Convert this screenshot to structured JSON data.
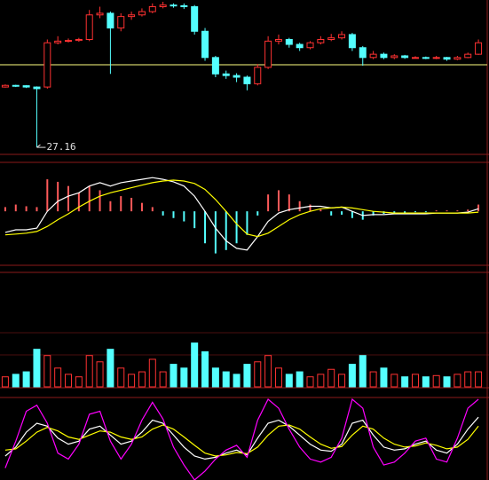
{
  "chart_data": [
    {
      "type": "candlestick",
      "open": [
        29.0,
        29.05,
        29.04,
        29.0,
        29.0,
        30.35,
        30.4,
        30.42,
        30.45,
        31.2,
        31.25,
        30.8,
        31.15,
        31.2,
        31.3,
        31.45,
        31.5,
        31.48,
        31.45,
        30.7,
        29.9,
        29.4,
        29.35,
        29.3,
        29.1,
        29.6,
        30.4,
        30.45,
        30.3,
        30.2,
        30.35,
        30.45,
        30.5,
        30.6,
        30.2,
        29.9,
        30.0,
        29.9,
        29.95,
        29.9,
        29.9,
        29.88,
        29.9,
        29.85,
        29.9,
        30.0
      ],
      "high": [
        29.08,
        29.07,
        29.06,
        29.02,
        30.45,
        30.55,
        30.48,
        30.5,
        31.35,
        31.45,
        31.3,
        31.25,
        31.3,
        31.4,
        31.55,
        31.6,
        31.55,
        31.55,
        31.5,
        30.8,
        29.95,
        29.5,
        29.42,
        29.35,
        29.7,
        30.55,
        30.6,
        30.5,
        30.35,
        30.4,
        30.55,
        30.62,
        30.7,
        30.65,
        30.25,
        30.1,
        30.05,
        30.0,
        29.98,
        29.94,
        29.93,
        29.95,
        29.92,
        29.95,
        30.05,
        30.45
      ],
      "low": [
        28.98,
        29.0,
        28.97,
        27.16,
        28.95,
        30.3,
        30.36,
        30.38,
        30.4,
        31.1,
        29.4,
        30.7,
        31.05,
        31.15,
        31.25,
        31.4,
        31.42,
        31.38,
        30.6,
        29.8,
        29.3,
        29.25,
        29.15,
        28.9,
        29.05,
        29.55,
        30.3,
        30.2,
        30.1,
        30.15,
        30.3,
        30.4,
        30.45,
        30.1,
        29.65,
        29.85,
        29.85,
        29.85,
        29.86,
        29.87,
        29.85,
        29.85,
        29.8,
        29.82,
        29.88,
        29.98
      ],
      "close": [
        29.05,
        29.04,
        29.0,
        28.95,
        30.35,
        30.4,
        30.42,
        30.45,
        31.2,
        31.25,
        30.8,
        31.15,
        31.2,
        31.3,
        31.45,
        31.5,
        31.48,
        31.45,
        30.7,
        29.9,
        29.4,
        29.35,
        29.3,
        29.1,
        29.6,
        30.4,
        30.45,
        30.3,
        30.2,
        30.35,
        30.45,
        30.5,
        30.6,
        30.2,
        29.9,
        30.0,
        29.9,
        29.95,
        29.9,
        29.9,
        29.88,
        29.9,
        29.85,
        29.9,
        30.0,
        30.35
      ],
      "ylim": [
        27.0,
        31.6
      ],
      "reference_line": 29.68,
      "reference_color": "#ffff80",
      "up_color": "#ff3232",
      "down_color": "#54ffff"
    },
    {
      "type": "macd",
      "values": [
        0.05,
        0.08,
        0.06,
        0.05,
        0.38,
        0.35,
        0.3,
        0.22,
        0.3,
        0.25,
        0.12,
        0.18,
        0.16,
        0.1,
        0.05,
        -0.05,
        -0.08,
        -0.12,
        -0.2,
        -0.38,
        -0.5,
        -0.46,
        -0.38,
        -0.28,
        -0.05,
        0.2,
        0.25,
        0.2,
        0.12,
        0.08,
        0.02,
        -0.05,
        -0.04,
        -0.08,
        -0.1,
        -0.05,
        -0.03,
        -0.02,
        -0.02,
        -0.01,
        -0.01,
        0.01,
        0.01,
        0.01,
        0.02,
        0.08
      ],
      "up_color": "#ff5a5a",
      "down_color": "#54ffff",
      "series": [
        {
          "color": "#ffffff",
          "values": [
            -0.25,
            -0.22,
            -0.22,
            -0.2,
            0.0,
            0.12,
            0.18,
            0.22,
            0.3,
            0.34,
            0.3,
            0.34,
            0.36,
            0.38,
            0.4,
            0.38,
            0.35,
            0.3,
            0.18,
            0.0,
            -0.2,
            -0.35,
            -0.44,
            -0.46,
            -0.3,
            -0.12,
            -0.02,
            0.02,
            0.04,
            0.06,
            0.06,
            0.04,
            0.05,
            0.0,
            -0.05,
            -0.04,
            -0.04,
            -0.03,
            -0.03,
            -0.03,
            -0.03,
            -0.02,
            -0.02,
            -0.02,
            -0.01,
            0.03
          ]
        },
        {
          "color": "#ffff00",
          "values": [
            -0.28,
            -0.27,
            -0.26,
            -0.24,
            -0.18,
            -0.1,
            -0.03,
            0.05,
            0.12,
            0.18,
            0.22,
            0.25,
            0.28,
            0.31,
            0.34,
            0.36,
            0.37,
            0.36,
            0.33,
            0.26,
            0.14,
            0.0,
            -0.15,
            -0.27,
            -0.3,
            -0.26,
            -0.18,
            -0.1,
            -0.04,
            0.0,
            0.03,
            0.04,
            0.05,
            0.04,
            0.02,
            0.0,
            -0.01,
            -0.02,
            -0.02,
            -0.02,
            -0.02,
            -0.02,
            -0.02,
            -0.02,
            -0.02,
            -0.01
          ]
        }
      ],
      "ylim": [
        -0.62,
        0.56
      ]
    },
    {
      "type": "volume",
      "values": [
        8,
        10,
        12,
        30,
        25,
        15,
        10,
        8,
        25,
        20,
        30,
        15,
        10,
        12,
        22,
        12,
        18,
        15,
        35,
        28,
        15,
        12,
        10,
        18,
        20,
        25,
        15,
        10,
        12,
        8,
        10,
        14,
        10,
        18,
        25,
        12,
        15,
        10,
        8,
        10,
        8,
        9,
        8,
        10,
        12,
        12
      ],
      "ylim": [
        0,
        90
      ]
    },
    {
      "type": "kdj",
      "series": [
        {
          "color": "#ffffff",
          "values": [
            20,
            35,
            60,
            75,
            70,
            50,
            40,
            45,
            65,
            70,
            55,
            40,
            45,
            60,
            80,
            75,
            55,
            35,
            20,
            15,
            18,
            25,
            30,
            22,
            50,
            75,
            80,
            70,
            55,
            40,
            30,
            28,
            40,
            75,
            80,
            55,
            35,
            30,
            32,
            40,
            45,
            30,
            25,
            40,
            65,
            85
          ]
        },
        {
          "color": "#ffff00",
          "values": [
            30,
            32,
            45,
            60,
            68,
            62,
            52,
            48,
            55,
            62,
            60,
            52,
            48,
            52,
            65,
            72,
            65,
            52,
            38,
            25,
            20,
            22,
            26,
            24,
            35,
            55,
            70,
            72,
            65,
            52,
            40,
            33,
            36,
            55,
            70,
            65,
            50,
            40,
            35,
            37,
            42,
            38,
            32,
            35,
            48,
            70
          ]
        },
        {
          "color": "#ff00ff",
          "values": [
            0,
            45,
            95,
            105,
            75,
            25,
            15,
            40,
            90,
            95,
            45,
            15,
            40,
            80,
            110,
            82,
            35,
            5,
            -20,
            -5,
            15,
            30,
            38,
            18,
            80,
            115,
            100,
            65,
            35,
            15,
            10,
            18,
            50,
            115,
            100,
            35,
            5,
            10,
            25,
            45,
            50,
            15,
            10,
            50,
            100,
            115
          ]
        }
      ],
      "ylim": [
        -20,
        115
      ]
    }
  ]
}
